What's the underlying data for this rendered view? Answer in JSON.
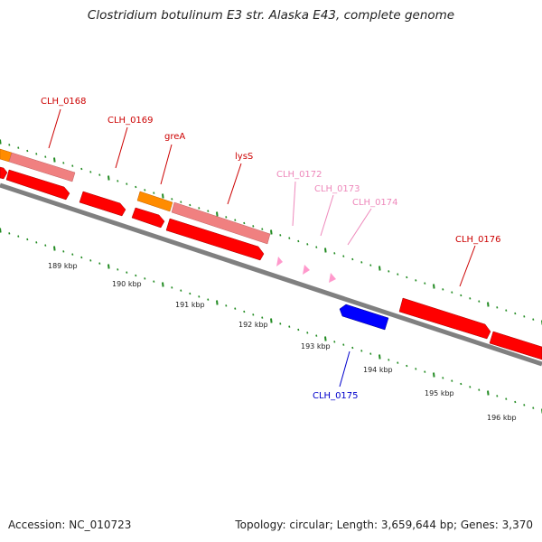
{
  "header": {
    "title": "Clostridium botulinum E3 str. Alaska E43, complete genome"
  },
  "footer": {
    "accession": "Accession: NC_010723",
    "summary": "Topology: circular; Length: 3,659,644 bp; Genes: 3,370"
  },
  "colors": {
    "backbone": "#808080",
    "gene_red": "#ff0000",
    "gene_orange": "#ff8c00",
    "gene_salmon": "#f08080",
    "gene_pink": "#ff99cc",
    "gene_blue": "#0000ff",
    "tick_green": "#228b22",
    "label_red": "#cc0000",
    "label_pink": "#ee88bb",
    "label_blue": "#0000cc"
  },
  "scale": {
    "ticks": [
      {
        "label": "189 kbp"
      },
      {
        "label": "190 kbp"
      },
      {
        "label": "191 kbp"
      },
      {
        "label": "192 kbp"
      },
      {
        "label": "193 kbp"
      },
      {
        "label": "194 kbp"
      },
      {
        "label": "195 kbp"
      },
      {
        "label": "196 kbp"
      }
    ]
  },
  "gene_labels": [
    {
      "id": "clh0168",
      "text": "CLH_0168"
    },
    {
      "id": "clh0169",
      "text": "CLH_0169"
    },
    {
      "id": "grea",
      "text": "greA"
    },
    {
      "id": "lyss",
      "text": "lysS"
    },
    {
      "id": "clh0172",
      "text": "CLH_0172"
    },
    {
      "id": "clh0173",
      "text": "CLH_0173"
    },
    {
      "id": "clh0174",
      "text": "CLH_0174"
    },
    {
      "id": "clh0176",
      "text": "CLH_0176"
    },
    {
      "id": "clh0175",
      "text": "CLH_0175"
    }
  ]
}
